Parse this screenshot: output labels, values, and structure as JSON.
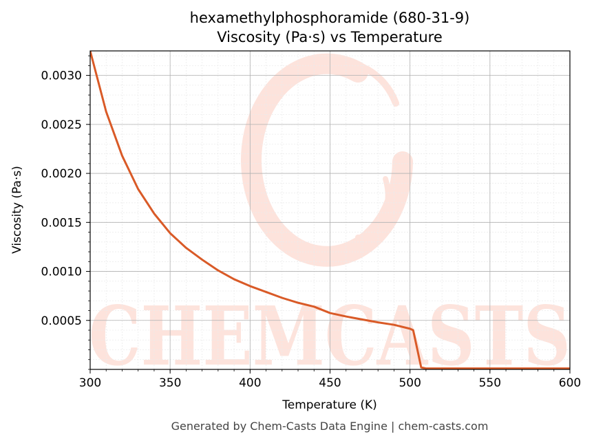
{
  "chart_data": {
    "type": "line",
    "title_line1": "hexamethylphosphoramide (680-31-9)",
    "title_line2": "Viscosity (Pa·s) vs Temperature",
    "xlabel": "Temperature (K)",
    "ylabel": "Viscosity (Pa·s)",
    "xlim": [
      300,
      600
    ],
    "ylim": [
      0.0,
      0.00325
    ],
    "xticks": [
      "300",
      "350",
      "400",
      "450",
      "500",
      "550",
      "600"
    ],
    "yticks": [
      "0.0005",
      "0.0010",
      "0.0015",
      "0.0020",
      "0.0025",
      "0.0030"
    ],
    "grid": true,
    "series": [
      {
        "color": "#d95a27",
        "x": [
          300,
          310,
          320,
          330,
          340,
          350,
          360,
          370,
          380,
          390,
          400,
          410,
          420,
          430,
          440,
          450,
          460,
          470,
          480,
          490,
          500,
          502,
          507,
          510,
          520,
          550,
          580,
          600
        ],
        "y": [
          0.00325,
          0.00263,
          0.00218,
          0.00184,
          0.00159,
          0.00139,
          0.00124,
          0.00112,
          0.00101,
          0.00092,
          0.00085,
          0.00079,
          0.00073,
          0.00068,
          0.00064,
          0.000575,
          0.00054,
          0.00051,
          0.00048,
          0.000455,
          0.000415,
          0.0004,
          2e-05,
          1e-05,
          1e-05,
          1e-05,
          1e-05,
          1e-05
        ]
      }
    ]
  },
  "watermark": {
    "text": "CHEMCASTS",
    "color": "#fde3dc"
  },
  "footer": "Generated by Chem-Casts Data Engine | chem-casts.com"
}
